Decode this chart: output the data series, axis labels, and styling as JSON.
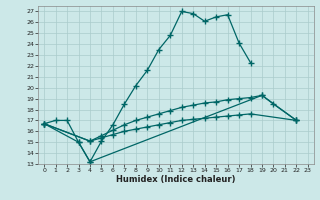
{
  "xlabel": "Humidex (Indice chaleur)",
  "bg_color": "#cce8e8",
  "line_color": "#006666",
  "grid_color": "#aacccc",
  "xlim": [
    -0.5,
    23.5
  ],
  "ylim": [
    13,
    27.5
  ],
  "xticks": [
    0,
    1,
    2,
    3,
    4,
    5,
    6,
    7,
    8,
    9,
    10,
    11,
    12,
    13,
    14,
    15,
    16,
    17,
    18,
    19,
    20,
    21,
    22,
    23
  ],
  "yticks": [
    13,
    14,
    15,
    16,
    17,
    18,
    19,
    20,
    21,
    22,
    23,
    24,
    25,
    26,
    27
  ],
  "series": [
    {
      "x": [
        0,
        1,
        2,
        3,
        4,
        5,
        6,
        7,
        8,
        9,
        10,
        11,
        12,
        13,
        14,
        15,
        16,
        17,
        18
      ],
      "y": [
        16.7,
        17.0,
        17.0,
        15.0,
        13.2,
        15.1,
        16.6,
        18.5,
        20.2,
        21.6,
        23.5,
        24.8,
        27.0,
        26.8,
        26.1,
        26.5,
        26.7,
        24.1,
        22.3
      ]
    },
    {
      "x": [
        0,
        3,
        4,
        19,
        20,
        22
      ],
      "y": [
        16.7,
        15.0,
        13.2,
        19.3,
        18.5,
        17.0
      ]
    },
    {
      "x": [
        0,
        4,
        5,
        6,
        7,
        8,
        9,
        10,
        11,
        12,
        13,
        14,
        15,
        16,
        17,
        18,
        19,
        22
      ],
      "y": [
        16.7,
        15.1,
        15.6,
        16.1,
        16.6,
        17.0,
        17.3,
        17.6,
        17.9,
        18.2,
        18.4,
        18.6,
        18.7,
        18.9,
        19.0,
        19.1,
        19.3,
        17.0
      ]
    },
    {
      "x": [
        0,
        4,
        5,
        6,
        7,
        8,
        9,
        10,
        11,
        12,
        13,
        14,
        15,
        16,
        17,
        18,
        22
      ],
      "y": [
        16.7,
        15.1,
        15.4,
        15.7,
        16.0,
        16.2,
        16.4,
        16.6,
        16.8,
        17.0,
        17.1,
        17.2,
        17.3,
        17.4,
        17.5,
        17.6,
        17.0
      ]
    }
  ]
}
